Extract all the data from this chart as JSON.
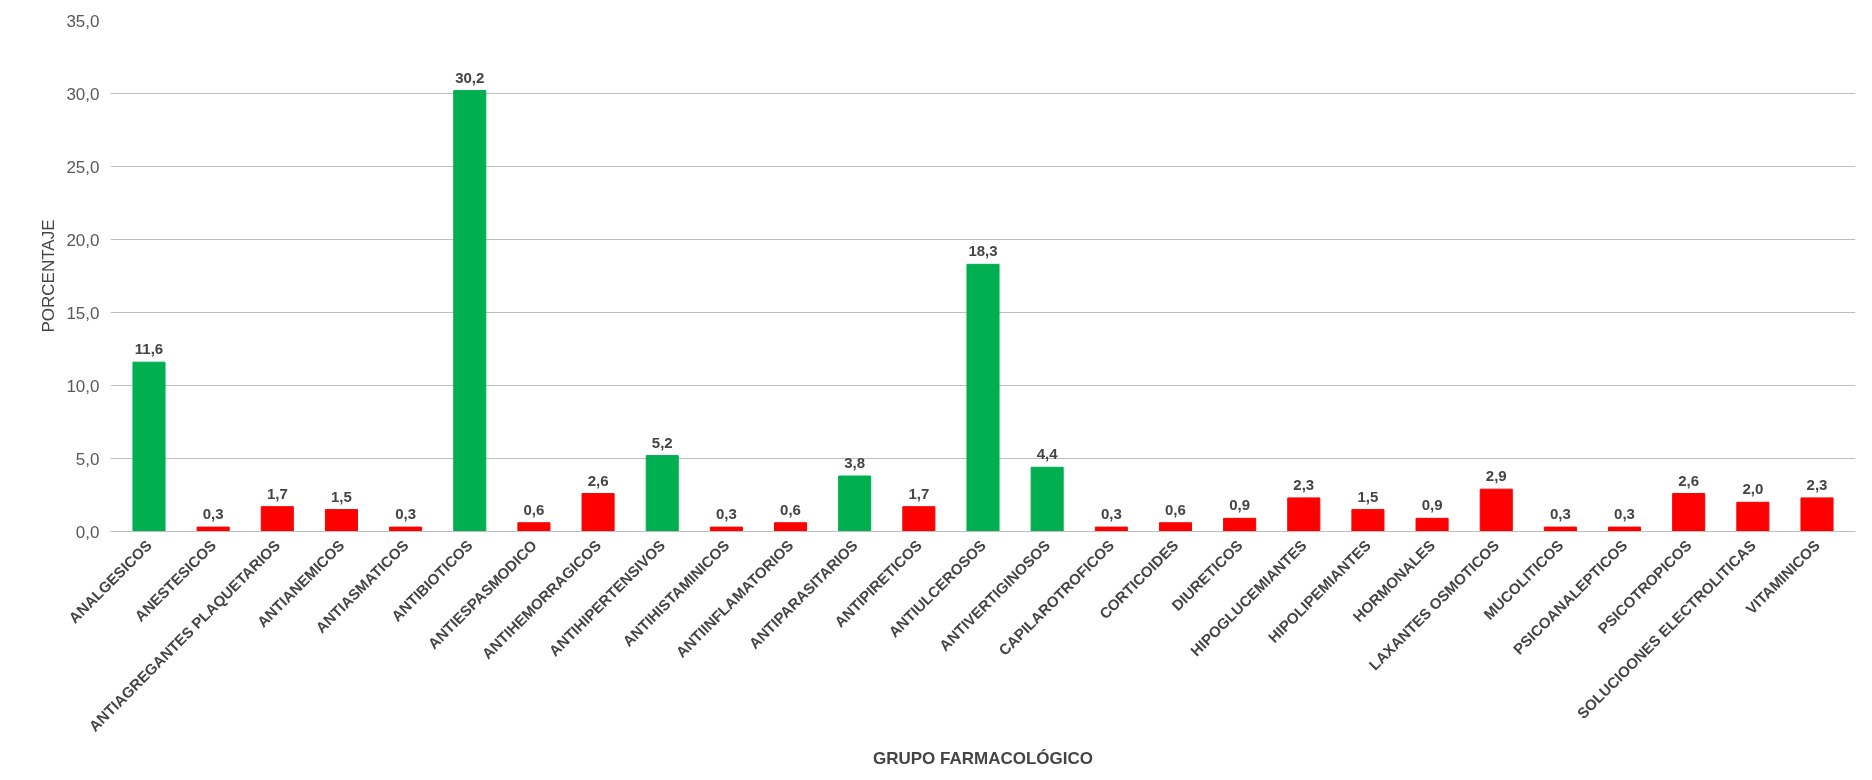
{
  "chart_data": {
    "type": "bar",
    "xlabel": "GRUPO FARMACOLÓGICO",
    "ylabel": "PORCENTAJE",
    "categories": [
      "ANALGESICOS",
      "ANESTESICOS",
      "ANTIAGREGANTES PLAQUETARIOS",
      "ANTIANEMICOS",
      "ANTIASMATICOS",
      "ANTIBIOTICOS",
      "ANTIESPASMODICO",
      "ANTIHEMORRAGICOS",
      "ANTIHIPERTENSIVOS",
      "ANTIHISTAMINICOS",
      "ANTIINFLAMATORIOS",
      "ANTIPARASITARIOS",
      "ANTIPIRETICOS",
      "ANTIULCEROSOS",
      "ANTIVERTIGINOSOS",
      "CAPILAROTROFICOS",
      "CORTICOIDES",
      "DIURETICOS",
      "HIPOGLUCEMIANTES",
      "HIPOLIPEMIANTES",
      "HORMONALES",
      "LAXANTES OSMOTICOS",
      "MUCOLITICOS",
      "PSICOANALEPTICOS",
      "PSICOTROPICOS",
      "SOLUCIOONES ELECTROLITICAS",
      "VITAMINICOS"
    ],
    "values": [
      11.6,
      0.3,
      1.7,
      1.5,
      0.3,
      30.2,
      0.6,
      2.6,
      5.2,
      0.3,
      0.6,
      3.8,
      1.7,
      18.3,
      4.4,
      0.3,
      0.6,
      0.9,
      2.3,
      1.5,
      0.9,
      2.9,
      0.3,
      0.3,
      2.6,
      2.0,
      2.3
    ],
    "value_labels": [
      "11,6",
      "0,3",
      "1,7",
      "1,5",
      "0,3",
      "30,2",
      "0,6",
      "2,6",
      "5,2",
      "0,3",
      "0,6",
      "3,8",
      "1,7",
      "18,3",
      "4,4",
      "0,3",
      "0,6",
      "0,9",
      "2,3",
      "1,5",
      "0,9",
      "2,9",
      "0,3",
      "0,3",
      "2,6",
      "2,0",
      "2,3"
    ],
    "colors": [
      "#00b050",
      "#ff0000",
      "#ff0000",
      "#ff0000",
      "#ff0000",
      "#00b050",
      "#ff0000",
      "#ff0000",
      "#00b050",
      "#ff0000",
      "#ff0000",
      "#00b050",
      "#ff0000",
      "#00b050",
      "#00b050",
      "#ff0000",
      "#ff0000",
      "#ff0000",
      "#ff0000",
      "#ff0000",
      "#ff0000",
      "#ff0000",
      "#ff0000",
      "#ff0000",
      "#ff0000",
      "#ff0000",
      "#ff0000"
    ],
    "ylim": [
      0,
      35
    ],
    "yticks": [
      {
        "value": 0,
        "label": "0,0"
      },
      {
        "value": 5,
        "label": "5,0"
      },
      {
        "value": 10,
        "label": "10,0"
      },
      {
        "value": 15,
        "label": "15,0"
      },
      {
        "value": 20,
        "label": "20,0"
      },
      {
        "value": 25,
        "label": "25,0"
      },
      {
        "value": 30,
        "label": "30,0"
      },
      {
        "value": 35,
        "label": "35,0"
      }
    ],
    "grid": "y"
  }
}
